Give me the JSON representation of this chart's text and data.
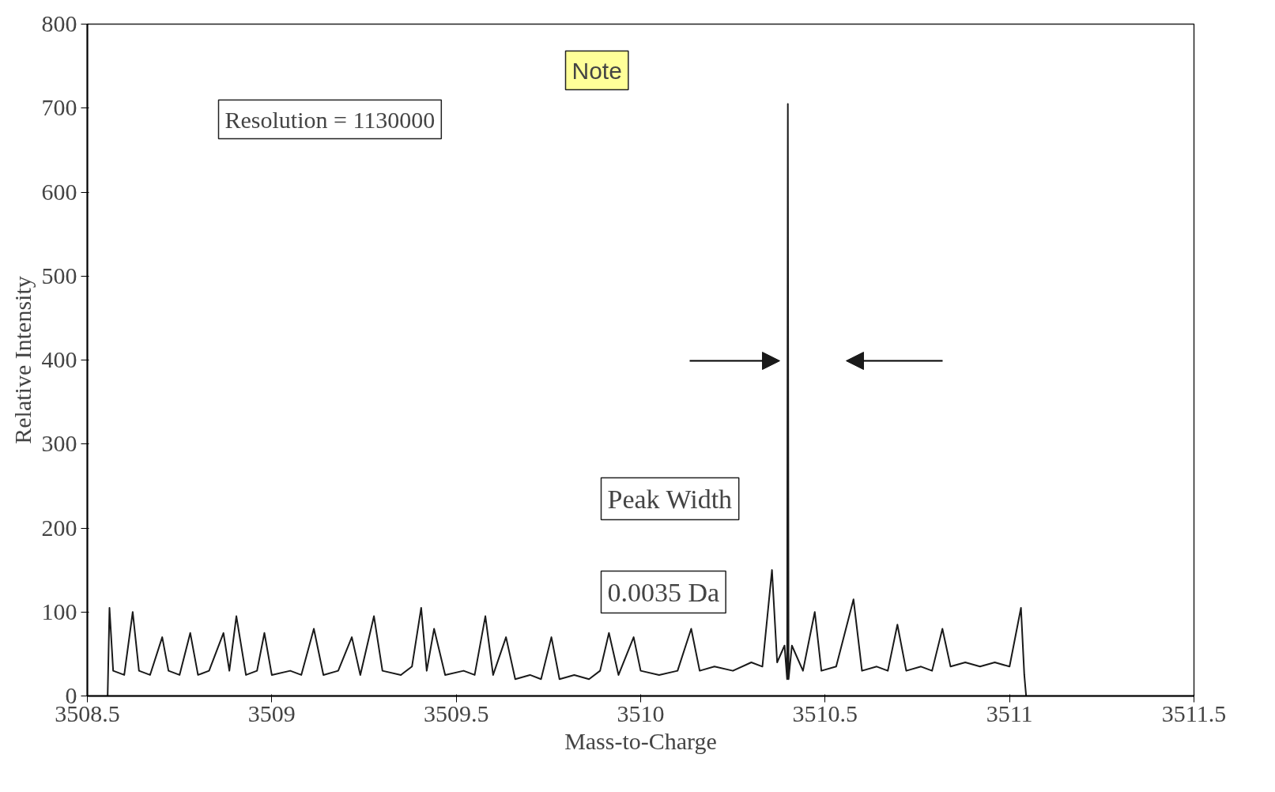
{
  "chart_data": {
    "type": "line",
    "xlabel": "Mass-to-Charge",
    "ylabel": "Relative Intensity",
    "annotations": [
      "Note",
      "Resolution = 1130000",
      "Peak Width",
      "0.0035 Da"
    ],
    "xlim": [
      3508.5,
      3511.5
    ],
    "ylim": [
      0,
      800
    ],
    "xticks": [
      3508.5,
      3509,
      3509.5,
      3510,
      3510.5,
      3511,
      3511.5
    ],
    "yticks": [
      0,
      100,
      200,
      300,
      400,
      500,
      600,
      700,
      800
    ],
    "grid": false,
    "marker": "none",
    "line_style": "solid",
    "series": [
      {
        "color": "#1a1a1a",
        "x": [
          3508.555,
          3508.56,
          3508.57,
          3508.6,
          3508.623,
          3508.64,
          3508.67,
          3508.703,
          3508.72,
          3508.75,
          3508.779,
          3508.8,
          3508.83,
          3508.869,
          3508.885,
          3508.904,
          3508.93,
          3508.96,
          3508.98,
          3509.0,
          3509.05,
          3509.08,
          3509.114,
          3509.14,
          3509.18,
          3509.217,
          3509.24,
          3509.277,
          3509.3,
          3509.35,
          3509.38,
          3509.405,
          3509.42,
          3509.44,
          3509.47,
          3509.52,
          3509.55,
          3509.579,
          3509.6,
          3509.635,
          3509.66,
          3509.7,
          3509.73,
          3509.758,
          3509.78,
          3509.82,
          3509.86,
          3509.89,
          3509.914,
          3509.94,
          3509.981,
          3510.0,
          3510.05,
          3510.1,
          3510.137,
          3510.16,
          3510.2,
          3510.25,
          3510.3,
          3510.33,
          3510.356,
          3510.37,
          3510.39,
          3510.397,
          3510.399,
          3510.401,
          3510.41,
          3510.44,
          3510.472,
          3510.49,
          3510.53,
          3510.577,
          3510.6,
          3510.64,
          3510.67,
          3510.696,
          3510.72,
          3510.76,
          3510.79,
          3510.818,
          3510.84,
          3510.88,
          3510.92,
          3510.96,
          3511.0,
          3511.031,
          3511.04,
          3511.045
        ],
        "values": [
          0,
          105,
          30,
          25,
          100,
          30,
          25,
          70,
          30,
          25,
          75,
          25,
          30,
          75,
          30,
          95,
          25,
          30,
          75,
          25,
          30,
          25,
          80,
          25,
          30,
          70,
          25,
          95,
          30,
          25,
          35,
          105,
          30,
          80,
          25,
          30,
          25,
          95,
          25,
          70,
          20,
          25,
          20,
          70,
          20,
          25,
          20,
          30,
          75,
          25,
          70,
          30,
          25,
          30,
          80,
          30,
          35,
          30,
          40,
          35,
          150,
          40,
          60,
          20,
          705,
          20,
          60,
          30,
          100,
          30,
          35,
          115,
          30,
          35,
          30,
          85,
          30,
          35,
          30,
          80,
          35,
          40,
          35,
          40,
          35,
          105,
          25,
          0
        ]
      }
    ]
  }
}
